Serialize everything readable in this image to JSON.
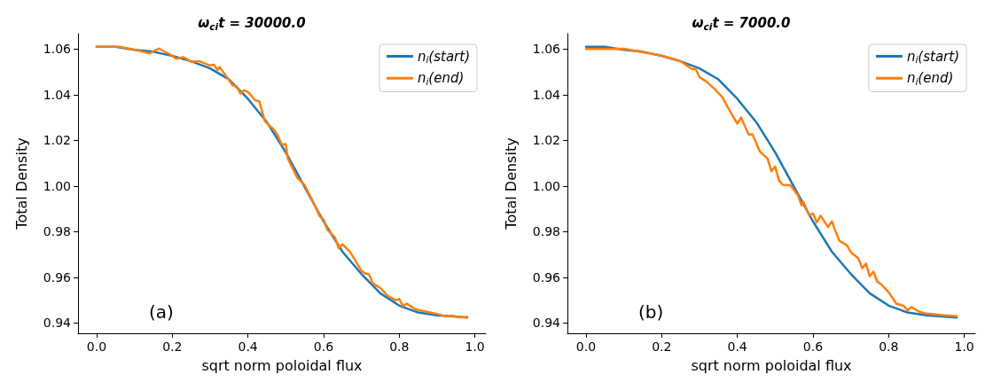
{
  "chart_data": [
    {
      "type": "line",
      "title": "ω$_{ci}$t = 30000.0",
      "xlabel": "sqrt norm poloidal flux",
      "ylabel": "Total Density",
      "annotations": [
        "(a)"
      ],
      "legend": "top right",
      "grid": false,
      "xlim": [
        -0.049,
        1.029
      ],
      "ylim": [
        0.9355,
        1.0667
      ],
      "xticks": [
        {
          "value": 0,
          "label": "0.0"
        },
        {
          "value": 0.2,
          "label": "0.2"
        },
        {
          "value": 0.4,
          "label": "0.4"
        },
        {
          "value": 0.6,
          "label": "0.6"
        },
        {
          "value": 0.8,
          "label": "0.8"
        },
        {
          "value": 1,
          "label": "1.0"
        }
      ],
      "yticks": [
        0.94,
        0.96,
        0.98,
        {
          "value": 1,
          "label": "1.00"
        },
        1.02,
        1.04,
        1.06
      ],
      "series": [
        {
          "name": "n$_{i}$(start)",
          "color": "#1f77b4",
          "x": [
            0,
            0.05,
            0.1,
            0.15,
            0.2,
            0.25,
            0.3,
            0.35,
            0.4,
            0.45,
            0.5,
            0.55,
            0.6,
            0.65,
            0.7,
            0.75,
            0.8,
            0.85,
            0.9,
            0.98
          ],
          "values": [
            1.061,
            1.061,
            1.0596,
            1.0588,
            1.057,
            1.0546,
            1.0515,
            1.0467,
            1.0382,
            1.028,
            1.0147,
            0.9996,
            0.9845,
            0.9712,
            0.9615,
            0.953,
            0.9476,
            0.9446,
            0.9434,
            0.9424
          ]
        },
        {
          "name": "n$_{i}$(end)",
          "color": "#ff7f0e",
          "x": [
            0,
            0.06,
            0.1,
            0.14,
            0.165,
            0.2,
            0.21,
            0.23,
            0.25,
            0.27,
            0.3,
            0.31,
            0.32,
            0.325,
            0.36,
            0.37,
            0.38,
            0.39,
            0.4,
            0.42,
            0.43,
            0.445,
            0.47,
            0.48,
            0.49,
            0.5,
            0.505,
            0.53,
            0.55,
            0.57,
            0.59,
            0.6,
            0.61,
            0.63,
            0.64,
            0.65,
            0.67,
            0.7,
            0.71,
            0.72,
            0.73,
            0.75,
            0.77,
            0.79,
            0.8,
            0.81,
            0.82,
            0.84,
            0.85,
            0.87,
            0.9,
            0.92,
            0.94,
            0.96,
            0.98
          ],
          "values": [
            1.061,
            1.061,
            1.0597,
            1.0581,
            1.0602,
            1.0571,
            1.0557,
            1.0564,
            1.0544,
            1.0547,
            1.0528,
            1.0531,
            1.0508,
            1.0521,
            1.0441,
            1.0437,
            1.0405,
            1.0419,
            1.0412,
            1.0375,
            1.0371,
            1.0283,
            1.0245,
            1.0217,
            1.0181,
            1.0184,
            1.0122,
            1.0037,
            1.0004,
            0.9938,
            0.9867,
            0.9853,
            0.9808,
            0.9776,
            0.9727,
            0.9745,
            0.9712,
            0.9629,
            0.9617,
            0.9613,
            0.9574,
            0.9553,
            0.9519,
            0.95,
            0.9505,
            0.9474,
            0.9485,
            0.9463,
            0.9457,
            0.945,
            0.944,
            0.943,
            0.9432,
            0.9425,
            0.9427
          ]
        }
      ]
    },
    {
      "type": "line",
      "title": "ω$_{ci}$t = 7000.0",
      "xlabel": "sqrt norm poloidal flux",
      "ylabel": "Total Density",
      "annotations": [
        "(b)"
      ],
      "legend": "top right",
      "grid": false,
      "xlim": [
        -0.049,
        1.029
      ],
      "ylim": [
        0.9355,
        1.0667
      ],
      "xticks": [
        {
          "value": 0,
          "label": "0.0"
        },
        {
          "value": 0.2,
          "label": "0.2"
        },
        {
          "value": 0.4,
          "label": "0.4"
        },
        {
          "value": 0.6,
          "label": "0.6"
        },
        {
          "value": 0.8,
          "label": "0.8"
        },
        {
          "value": 1,
          "label": "1.0"
        }
      ],
      "yticks": [
        0.94,
        0.96,
        0.98,
        {
          "value": 1,
          "label": "1.00"
        },
        1.02,
        1.04,
        1.06
      ],
      "series": [
        {
          "name": "n$_{i}$(start)",
          "color": "#1f77b4",
          "x": [
            0,
            0.05,
            0.1,
            0.15,
            0.2,
            0.25,
            0.3,
            0.35,
            0.4,
            0.45,
            0.5,
            0.55,
            0.6,
            0.65,
            0.7,
            0.75,
            0.8,
            0.85,
            0.9,
            0.98
          ],
          "values": [
            1.061,
            1.061,
            1.0596,
            1.0588,
            1.057,
            1.0546,
            1.0515,
            1.0467,
            1.0382,
            1.028,
            1.0147,
            0.9996,
            0.9845,
            0.9712,
            0.9615,
            0.953,
            0.9476,
            0.9446,
            0.9434,
            0.9424
          ]
        },
        {
          "name": "n$_{i}$(end)",
          "color": "#ff7f0e",
          "x": [
            0,
            0.1,
            0.2,
            0.22,
            0.25,
            0.28,
            0.29,
            0.3,
            0.32,
            0.34,
            0.36,
            0.38,
            0.4,
            0.41,
            0.43,
            0.44,
            0.46,
            0.48,
            0.49,
            0.5,
            0.51,
            0.52,
            0.54,
            0.56,
            0.57,
            0.575,
            0.59,
            0.6,
            0.61,
            0.62,
            0.64,
            0.65,
            0.66,
            0.67,
            0.69,
            0.7,
            0.72,
            0.73,
            0.74,
            0.75,
            0.76,
            0.77,
            0.78,
            0.8,
            0.82,
            0.84,
            0.85,
            0.86,
            0.88,
            0.9,
            0.94,
            0.98
          ],
          "values": [
            1.06,
            1.0601,
            1.0571,
            1.0561,
            1.0547,
            1.0512,
            1.0513,
            1.0477,
            1.0455,
            1.0425,
            1.039,
            1.033,
            1.0273,
            1.03,
            1.0225,
            1.0226,
            1.015,
            1.012,
            1.0065,
            1.0085,
            1.0025,
            1.0005,
            1.0003,
            0.996,
            0.9915,
            0.993,
            0.987,
            0.988,
            0.984,
            0.987,
            0.982,
            0.9845,
            0.98,
            0.976,
            0.974,
            0.971,
            0.9683,
            0.964,
            0.966,
            0.9605,
            0.9625,
            0.958,
            0.957,
            0.9535,
            0.9485,
            0.9475,
            0.9455,
            0.947,
            0.945,
            0.9441,
            0.9435,
            0.943
          ]
        }
      ]
    }
  ]
}
